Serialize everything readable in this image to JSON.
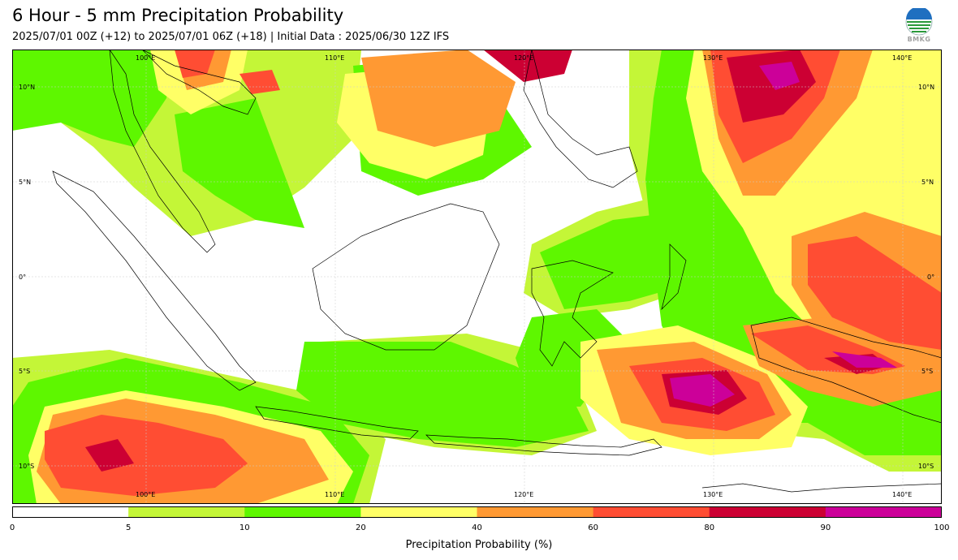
{
  "header": {
    "title": "6 Hour - 5 mm Precipitation Probability",
    "subtitle": "2025/07/01 00Z (+12) to 2025/07/01 06Z (+18) | Initial Data : 2025/06/30 12Z IFS"
  },
  "logo": {
    "name": "bmkg-logo",
    "text": "BMKG"
  },
  "map": {
    "lon_labels_top": [
      "100°E",
      "110°E",
      "120°E",
      "130°E",
      "140°E"
    ],
    "lon_labels_bottom": [
      "100°E",
      "110°E",
      "120°E",
      "130°E",
      "140°E"
    ],
    "lat_labels_left": [
      "10°N",
      "5°N",
      "0°",
      "5°S",
      "10°S"
    ],
    "lat_labels_right": [
      "10°N",
      "5°N",
      "0°",
      "5°S",
      "10°S"
    ],
    "extent": {
      "lon": [
        92,
        141
      ],
      "lat": [
        -12,
        12
      ]
    },
    "grid": true
  },
  "colorbar": {
    "levels": [
      0,
      5,
      10,
      20,
      40,
      60,
      80,
      90,
      100
    ],
    "tick_labels": [
      "0",
      "5",
      "10",
      "20",
      "40",
      "60",
      "80",
      "90",
      "100"
    ],
    "colors": [
      "#ffffff",
      "#c4f637",
      "#5ef700",
      "#ffff66",
      "#ff9933",
      "#ff4d33",
      "#cc0033",
      "#cc0099"
    ],
    "label": "Precipitation Probability (%)"
  }
}
